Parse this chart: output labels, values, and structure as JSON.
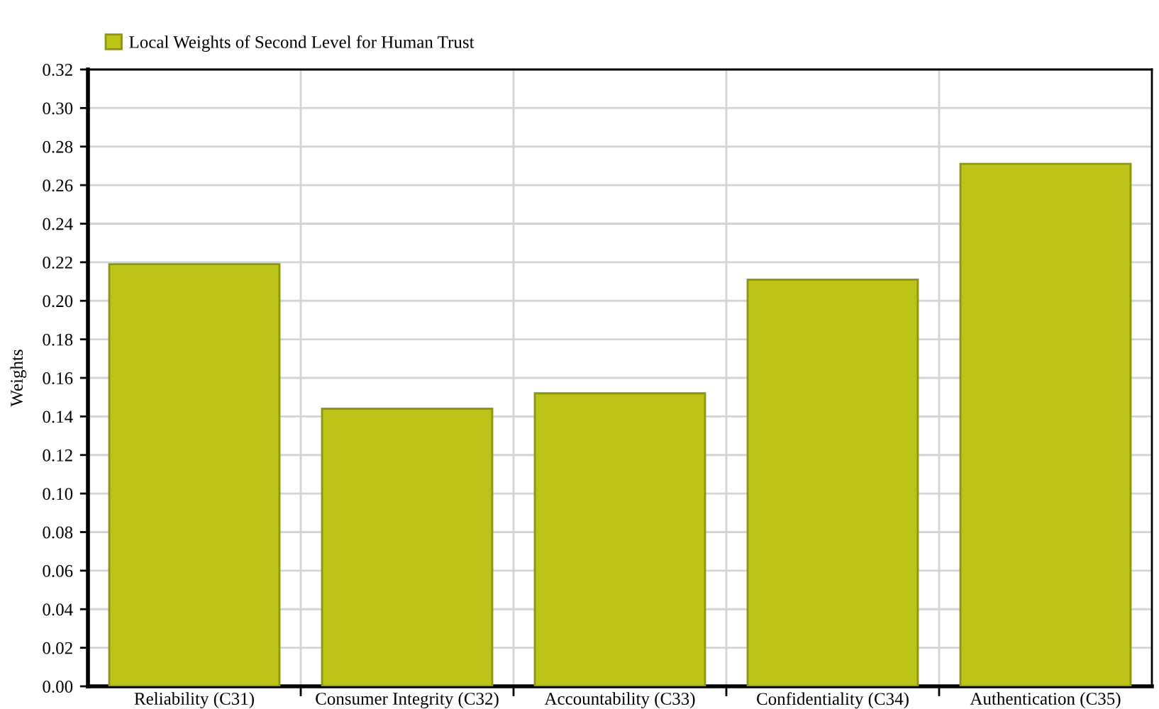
{
  "chart_data": {
    "type": "bar",
    "categories": [
      "Reliability (C31)",
      "Consumer Integrity (C32)",
      "Accountability (C33)",
      "Confidentiality (C34)",
      "Authentication (C35)"
    ],
    "series": [
      {
        "name": "Local Weights of Second Level for Human Trust",
        "color": "#bcc41a",
        "values": [
          0.219,
          0.144,
          0.152,
          0.211,
          0.271
        ]
      }
    ],
    "ylabel": "Weights",
    "ylim": [
      0,
      0.32
    ],
    "yticks": [
      {
        "value": 0,
        "label": "0.00"
      },
      {
        "value": 0.02,
        "label": "0.02"
      },
      {
        "value": 0.04,
        "label": "0.04"
      },
      {
        "value": 0.06,
        "label": "0.06"
      },
      {
        "value": 0.08,
        "label": "0.08"
      },
      {
        "value": 0.1,
        "label": "0.10"
      },
      {
        "value": 0.12,
        "label": "0.12"
      },
      {
        "value": 0.14,
        "label": "0.14"
      },
      {
        "value": 0.16,
        "label": "0.16"
      },
      {
        "value": 0.18,
        "label": "0.18"
      },
      {
        "value": 0.2,
        "label": "0.20"
      },
      {
        "value": 0.22,
        "label": "0.22"
      },
      {
        "value": 0.24,
        "label": "0.24"
      },
      {
        "value": 0.26,
        "label": "0.26"
      },
      {
        "value": 0.28,
        "label": "0.28"
      },
      {
        "value": 0.3,
        "label": "0.30"
      },
      {
        "value": 0.32,
        "label": "0.32"
      }
    ],
    "grid": true,
    "legend": "top left"
  }
}
